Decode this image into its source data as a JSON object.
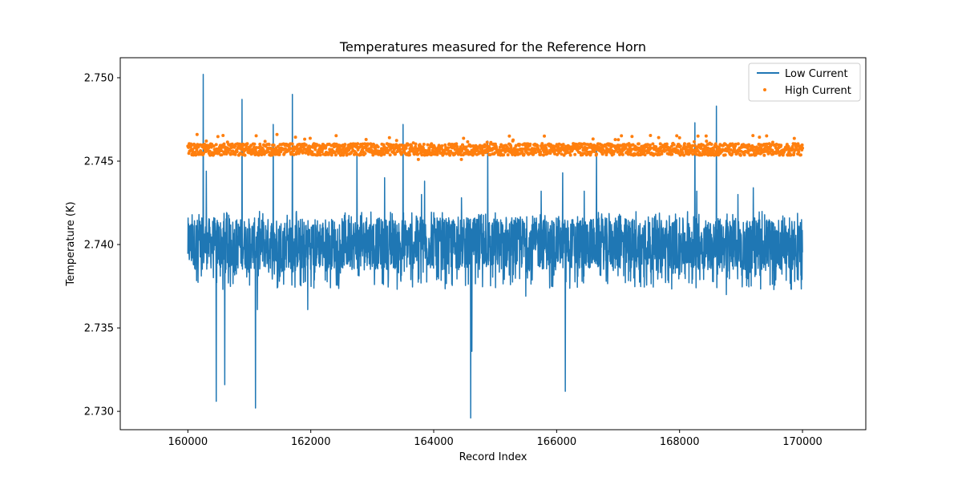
{
  "chart_data": {
    "type": "line",
    "title": "Temperatures measured for the Reference Horn",
    "xlabel": "Record Index",
    "ylabel": "Temperature (K)",
    "xlim": [
      158900,
      171030
    ],
    "ylim": [
      2.7289,
      2.7512
    ],
    "x_ticks": [
      160000,
      162000,
      164000,
      166000,
      168000,
      170000
    ],
    "x_tick_labels": [
      "160000",
      "162000",
      "164000",
      "166000",
      "168000",
      "170000"
    ],
    "y_ticks": [
      2.73,
      2.735,
      2.74,
      2.745,
      2.75
    ],
    "y_tick_labels": [
      "2.730",
      "2.735",
      "2.740",
      "2.745",
      "2.750"
    ],
    "grid": false,
    "legend_position": "top-right",
    "series": [
      {
        "name": "Low Current",
        "style": "line",
        "color": "#1f77b4",
        "x_range": [
          160000,
          170000
        ],
        "band_low": 2.7385,
        "band_high": 2.7416,
        "center": 2.7401,
        "spikes": [
          {
            "x": 160250,
            "y": 2.7502
          },
          {
            "x": 160300,
            "y": 2.7444
          },
          {
            "x": 160460,
            "y": 2.7306
          },
          {
            "x": 160600,
            "y": 2.7316
          },
          {
            "x": 160880,
            "y": 2.7487
          },
          {
            "x": 161100,
            "y": 2.7302
          },
          {
            "x": 161130,
            "y": 2.7361
          },
          {
            "x": 161390,
            "y": 2.7472
          },
          {
            "x": 161700,
            "y": 2.749
          },
          {
            "x": 161950,
            "y": 2.7361
          },
          {
            "x": 162750,
            "y": 2.7455
          },
          {
            "x": 163200,
            "y": 2.744
          },
          {
            "x": 163500,
            "y": 2.7472
          },
          {
            "x": 163800,
            "y": 2.743
          },
          {
            "x": 163850,
            "y": 2.7438
          },
          {
            "x": 164450,
            "y": 2.7428
          },
          {
            "x": 164600,
            "y": 2.7296
          },
          {
            "x": 164620,
            "y": 2.7336
          },
          {
            "x": 164880,
            "y": 2.7462
          },
          {
            "x": 165500,
            "y": 2.7369
          },
          {
            "x": 165750,
            "y": 2.7432
          },
          {
            "x": 166100,
            "y": 2.7443
          },
          {
            "x": 166140,
            "y": 2.7312
          },
          {
            "x": 166450,
            "y": 2.7432
          },
          {
            "x": 166650,
            "y": 2.7457
          },
          {
            "x": 168250,
            "y": 2.7473
          },
          {
            "x": 168280,
            "y": 2.7432
          },
          {
            "x": 168600,
            "y": 2.7483
          },
          {
            "x": 168760,
            "y": 2.737
          },
          {
            "x": 168950,
            "y": 2.743
          },
          {
            "x": 169200,
            "y": 2.7434
          }
        ]
      },
      {
        "name": "High Current",
        "style": "scatter",
        "color": "#ff7f0e",
        "x_range": [
          160000,
          170000
        ],
        "band_low": 2.7454,
        "band_high": 2.7461,
        "center": 2.7457,
        "outliers": [
          {
            "x": 160150,
            "y": 2.7466
          },
          {
            "x": 160300,
            "y": 2.7462
          },
          {
            "x": 161450,
            "y": 2.7466
          },
          {
            "x": 162900,
            "y": 2.7463
          },
          {
            "x": 163750,
            "y": 2.7451
          },
          {
            "x": 164450,
            "y": 2.7451
          },
          {
            "x": 165800,
            "y": 2.7465
          },
          {
            "x": 166550,
            "y": 2.7454
          },
          {
            "x": 168000,
            "y": 2.7464
          },
          {
            "x": 168300,
            "y": 2.7465
          },
          {
            "x": 168450,
            "y": 2.7454
          }
        ]
      }
    ]
  }
}
